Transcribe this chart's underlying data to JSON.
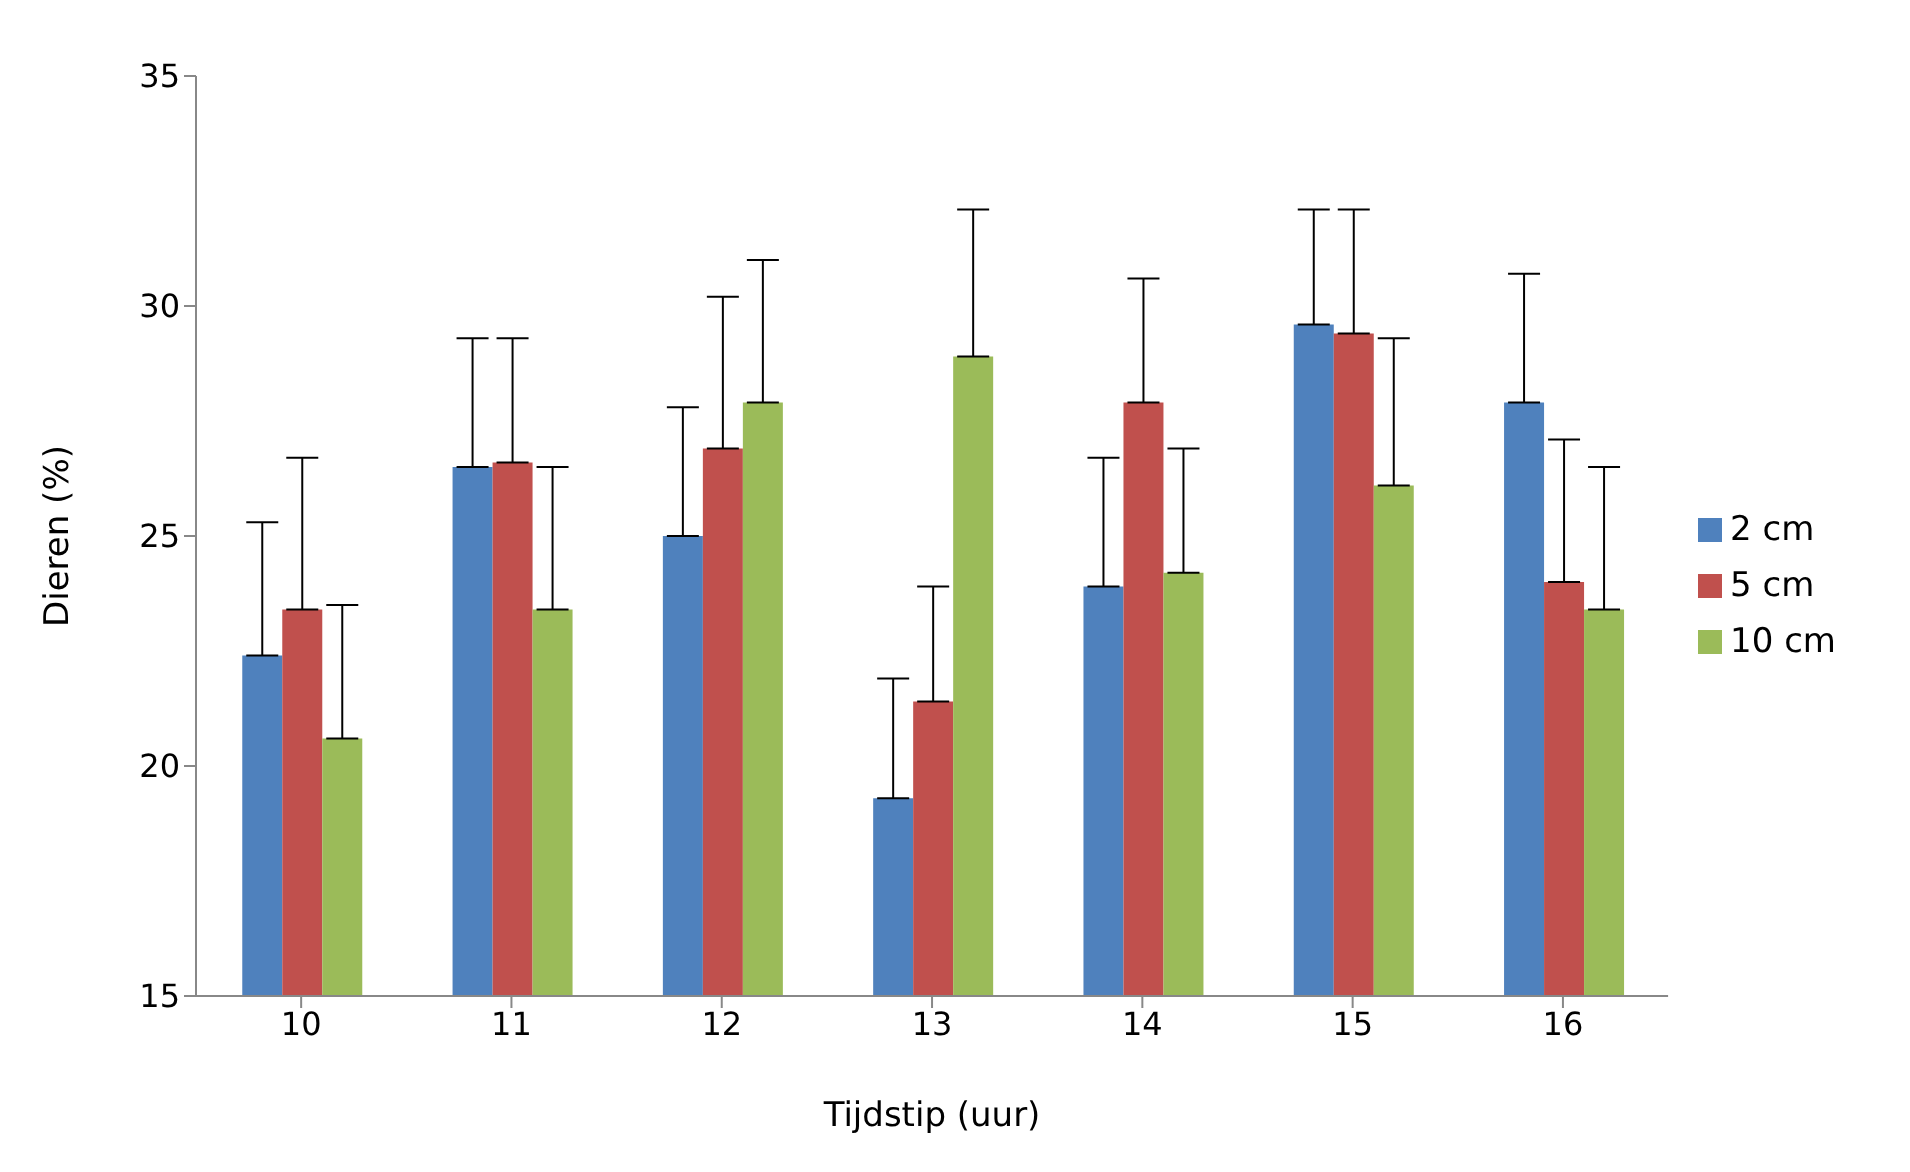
{
  "chart_data": {
    "type": "bar",
    "xlabel": "Tijdstip (uur)",
    "ylabel": "Dieren (%)",
    "categories": [
      "10",
      "11",
      "12",
      "13",
      "14",
      "15",
      "16"
    ],
    "series": [
      {
        "name": "2 cm",
        "color": "#4f81bd",
        "values": [
          22.4,
          26.5,
          25.0,
          19.3,
          23.9,
          29.6,
          27.9
        ],
        "errors": [
          [
            22.4,
            25.3
          ],
          [
            26.5,
            29.3
          ],
          [
            25.0,
            27.8
          ],
          [
            19.3,
            21.9
          ],
          [
            23.9,
            26.7
          ],
          [
            29.6,
            32.1
          ],
          [
            27.9,
            30.7
          ]
        ]
      },
      {
        "name": "5 cm",
        "color": "#c0504d",
        "values": [
          23.4,
          26.6,
          26.9,
          21.4,
          27.9,
          29.4,
          24.0
        ],
        "errors": [
          [
            23.4,
            26.7
          ],
          [
            26.6,
            29.3
          ],
          [
            26.9,
            30.2
          ],
          [
            21.4,
            23.9
          ],
          [
            27.9,
            30.6
          ],
          [
            29.4,
            32.1
          ],
          [
            24.0,
            27.1
          ]
        ]
      },
      {
        "name": "10 cm",
        "color": "#9bbb59",
        "values": [
          20.6,
          23.4,
          27.9,
          28.9,
          24.2,
          26.1,
          23.4
        ],
        "errors": [
          [
            20.6,
            23.5
          ],
          [
            23.4,
            26.5
          ],
          [
            27.9,
            31.0
          ],
          [
            28.9,
            32.1
          ],
          [
            24.2,
            26.9
          ],
          [
            26.1,
            29.3
          ],
          [
            23.4,
            26.5
          ]
        ]
      }
    ],
    "ylim": [
      15,
      35
    ],
    "yticks": [
      15,
      20,
      25,
      30,
      35
    ],
    "legend": "right"
  }
}
